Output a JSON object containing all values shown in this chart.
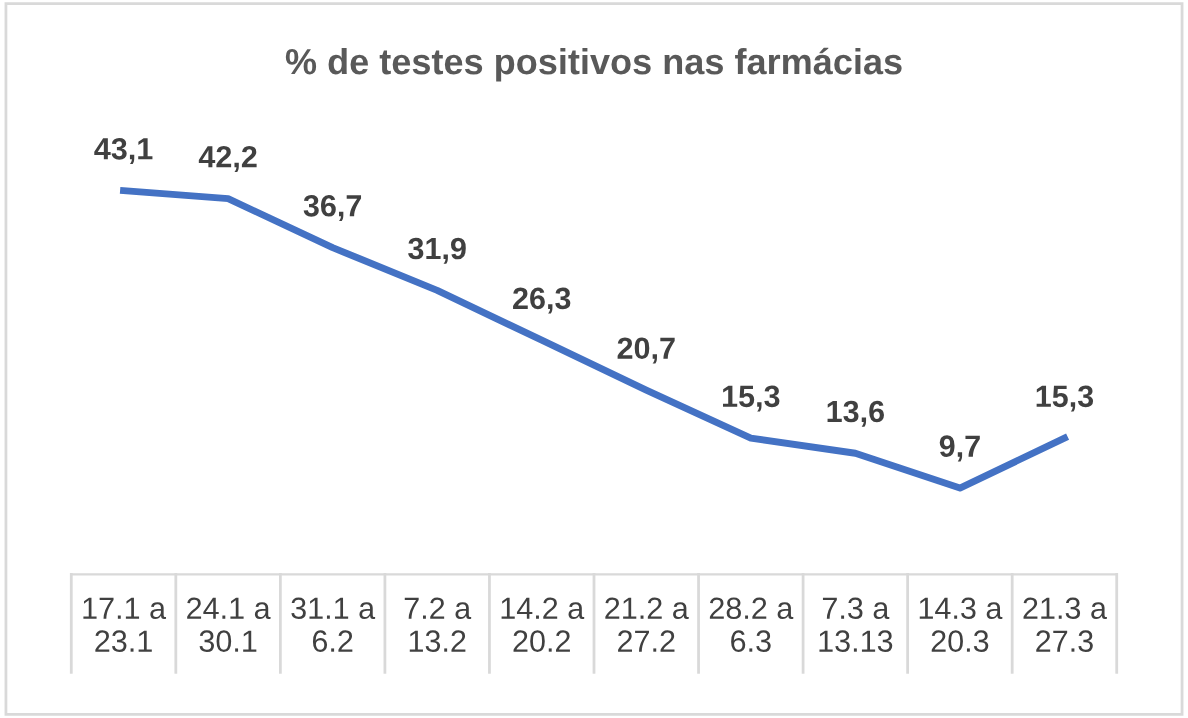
{
  "chart_data": {
    "type": "line",
    "title": "% de testes positivos nas farmácias",
    "categories": [
      "17.1 a\n23.1",
      "24.1 a\n30.1",
      "31.1 a\n6.2",
      "7.2 a\n13.2",
      "14.2 a\n20.2",
      "21.2 a\n27.2",
      "28.2 a\n6.3",
      "7.3 a\n13.13",
      "14.3 a\n20.3",
      "21.3 a\n27.3"
    ],
    "series": [
      {
        "color": "#4472c4",
        "values": [
          43.1,
          42.2,
          36.7,
          31.9,
          26.3,
          20.7,
          15.3,
          13.6,
          9.7,
          15.3
        ],
        "value_labels": [
          "43,1",
          "42,2",
          "36,7",
          "31,9",
          "26,3",
          "20,7",
          "15,3",
          "13,6",
          "9,7",
          "15,3"
        ]
      }
    ],
    "grid": false,
    "legend": false,
    "marker": "none",
    "line_style": "solid"
  }
}
